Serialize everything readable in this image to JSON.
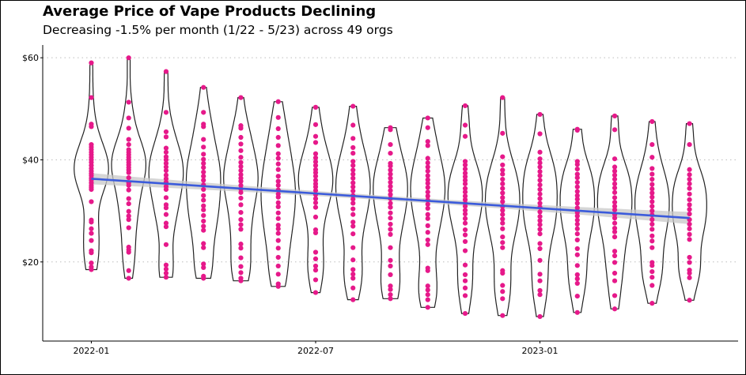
{
  "chart_data": {
    "type": "violin",
    "title": "Average Price of Vape Products Declining",
    "subtitle": "Decreasing -1.5% per month (1/22 - 5/23) across 49 orgs",
    "xlabel": "",
    "ylabel": "",
    "y_ticks": [
      {
        "value": 20,
        "label": "$20"
      },
      {
        "value": 40,
        "label": "$40"
      },
      {
        "value": 60,
        "label": "$60"
      }
    ],
    "x_ticks": [
      {
        "month_index": 0,
        "label": "2022-01"
      },
      {
        "month_index": 6,
        "label": "2022-07"
      },
      {
        "month_index": 12,
        "label": "2023-01"
      }
    ],
    "ylim": [
      4.5,
      62.5
    ],
    "xlim_months": [
      -1.3,
      17.3
    ],
    "grid": "horizontal dotted",
    "colors": {
      "points": "#e6198a",
      "trend": "#3b5bdb",
      "band": "#c8c8c8",
      "violin": "#222222"
    },
    "months": [
      {
        "month": "2022-01",
        "min": 18.5,
        "max": 59.0,
        "values": [
          18.5,
          19.0,
          19.8,
          21.8,
          22.2,
          24.2,
          25.6,
          26.5,
          27.8,
          28.2,
          31.8,
          34.2,
          34.6,
          35.0,
          35.5,
          36.0,
          36.4,
          36.9,
          37.3,
          37.8,
          38.3,
          38.9,
          39.5,
          40.0,
          40.5,
          41.0,
          41.5,
          42.0,
          42.5,
          43.0,
          46.5,
          47.0,
          52.2,
          59.0
        ]
      },
      {
        "month": "2022-02",
        "min": 16.8,
        "max": 60.0,
        "values": [
          16.8,
          18.3,
          21.9,
          22.4,
          22.9,
          26.7,
          28.3,
          29.0,
          29.9,
          31.4,
          32.4,
          34.1,
          35.0,
          35.5,
          36.5,
          37.5,
          38.0,
          38.5,
          39.0,
          39.5,
          40.0,
          40.5,
          41.0,
          41.5,
          42.0,
          43.0,
          44.0,
          46.2,
          48.2,
          51.3,
          60.0
        ]
      },
      {
        "month": "2022-03",
        "min": 17.0,
        "max": 57.3,
        "values": [
          17.0,
          17.8,
          18.6,
          19.4,
          23.4,
          26.9,
          27.6,
          29.3,
          30.6,
          31.2,
          32.6,
          34.2,
          34.8,
          35.6,
          36.3,
          37.0,
          37.9,
          38.6,
          39.3,
          40.0,
          40.6,
          41.5,
          42.3,
          44.5,
          45.5,
          49.3,
          57.3
        ]
      },
      {
        "month": "2022-04",
        "min": 16.8,
        "max": 54.2,
        "values": [
          16.8,
          17.2,
          18.9,
          19.6,
          22.8,
          23.6,
          26.2,
          27.0,
          28.0,
          29.1,
          30.2,
          31.0,
          32.1,
          33.0,
          34.2,
          35.1,
          36.0,
          36.8,
          37.6,
          38.5,
          39.3,
          40.1,
          41.1,
          42.5,
          44.0,
          46.5,
          47.0,
          49.3,
          54.2
        ]
      },
      {
        "month": "2022-05",
        "min": 16.3,
        "max": 52.2,
        "values": [
          16.3,
          16.8,
          17.9,
          19.1,
          20.8,
          22.7,
          23.5,
          26.4,
          27.3,
          28.3,
          29.7,
          31.2,
          32.5,
          33.6,
          34.3,
          35.0,
          35.8,
          36.4,
          37.1,
          37.9,
          38.7,
          39.5,
          40.5,
          41.8,
          43.1,
          44.4,
          46.2,
          46.7,
          52.2
        ]
      },
      {
        "month": "2022-06",
        "min": 15.2,
        "max": 51.4,
        "values": [
          15.2,
          15.7,
          17.6,
          19.2,
          20.9,
          22.7,
          24.2,
          25.6,
          26.5,
          27.2,
          28.5,
          29.6,
          30.8,
          31.6,
          32.7,
          33.3,
          34.1,
          35.0,
          35.8,
          36.8,
          38.1,
          39.2,
          40.3,
          41.2,
          42.8,
          44.4,
          46.1,
          48.3,
          51.4
        ]
      },
      {
        "month": "2022-07",
        "min": 14.0,
        "max": 50.3,
        "values": [
          14.0,
          16.5,
          18.4,
          19.2,
          20.6,
          21.9,
          25.7,
          26.3,
          28.8,
          30.7,
          31.6,
          32.4,
          33.2,
          34.0,
          34.7,
          35.3,
          36.0,
          36.8,
          37.5,
          38.1,
          38.9,
          39.6,
          40.4,
          41.2,
          43.4,
          44.6,
          46.9,
          50.3
        ]
      },
      {
        "month": "2022-08",
        "min": 12.6,
        "max": 50.5,
        "values": [
          12.6,
          14.9,
          16.8,
          17.6,
          18.5,
          20.4,
          22.8,
          25.5,
          27.0,
          27.8,
          29.3,
          30.4,
          31.5,
          32.3,
          33.0,
          33.9,
          34.7,
          35.5,
          36.4,
          37.2,
          38.0,
          38.9,
          39.7,
          41.3,
          42.4,
          44.2,
          46.8,
          50.5
        ]
      },
      {
        "month": "2022-09",
        "min": 12.8,
        "max": 46.3,
        "values": [
          12.8,
          13.6,
          14.6,
          15.3,
          17.5,
          19.2,
          20.3,
          22.8,
          25.4,
          26.4,
          27.4,
          28.6,
          29.6,
          30.7,
          31.5,
          32.4,
          33.2,
          34.0,
          34.8,
          35.6,
          36.4,
          37.2,
          38.0,
          38.8,
          39.3,
          41.3,
          43.0,
          45.9,
          46.3
        ]
      },
      {
        "month": "2022-10",
        "min": 11.1,
        "max": 48.2,
        "values": [
          11.1,
          12.6,
          13.6,
          14.5,
          15.3,
          18.3,
          18.8,
          23.4,
          24.3,
          25.8,
          27.1,
          28.5,
          29.3,
          30.5,
          31.3,
          32.1,
          32.9,
          33.7,
          34.6,
          35.4,
          36.1,
          36.9,
          37.8,
          38.6,
          39.4,
          40.3,
          42.8,
          43.6,
          46.3,
          48.2
        ]
      },
      {
        "month": "2022-11",
        "min": 9.9,
        "max": 50.6,
        "values": [
          9.9,
          13.4,
          14.9,
          16.3,
          17.5,
          19.4,
          22.2,
          24.0,
          25.3,
          26.3,
          27.6,
          28.5,
          29.4,
          30.1,
          30.9,
          31.5,
          32.2,
          32.9,
          33.7,
          34.4,
          35.3,
          36.0,
          36.7,
          37.4,
          38.2,
          39.0,
          39.7,
          44.6,
          46.8,
          50.6
        ]
      },
      {
        "month": "2022-12",
        "min": 9.5,
        "max": 52.2,
        "values": [
          9.5,
          12.8,
          14.2,
          15.4,
          17.8,
          18.3,
          22.8,
          23.8,
          24.9,
          26.5,
          27.6,
          28.4,
          29.3,
          30.1,
          30.9,
          31.8,
          32.6,
          33.5,
          34.4,
          35.3,
          36.2,
          37.2,
          38.0,
          39.0,
          40.6,
          45.2,
          52.2
        ]
      },
      {
        "month": "2023-01",
        "min": 9.3,
        "max": 48.9,
        "values": [
          9.3,
          13.6,
          14.4,
          16.3,
          17.6,
          20.3,
          22.6,
          23.6,
          25.5,
          26.4,
          27.3,
          28.1,
          28.9,
          29.8,
          30.7,
          31.5,
          32.4,
          33.3,
          34.2,
          35.1,
          36.0,
          36.9,
          37.7,
          38.6,
          39.4,
          40.2,
          41.5,
          45.1,
          48.9
        ]
      },
      {
        "month": "2023-02",
        "min": 10.1,
        "max": 46.0,
        "values": [
          10.1,
          13.3,
          15.8,
          16.7,
          17.5,
          19.3,
          21.4,
          22.6,
          24.3,
          25.5,
          26.5,
          27.4,
          28.2,
          29.0,
          29.7,
          30.6,
          31.5,
          32.3,
          33.0,
          33.8,
          34.7,
          35.6,
          36.5,
          37.2,
          38.2,
          39.1,
          39.7,
          45.8,
          46.0
        ]
      },
      {
        "month": "2023-03",
        "min": 10.8,
        "max": 48.6,
        "values": [
          10.8,
          13.4,
          16.3,
          17.8,
          19.9,
          21.2,
          22.1,
          24.9,
          25.9,
          26.6,
          27.6,
          28.6,
          29.3,
          30.2,
          30.9,
          31.7,
          32.6,
          33.6,
          34.5,
          35.3,
          36.2,
          37.0,
          37.8,
          38.6,
          40.2,
          45.9,
          48.6
        ]
      },
      {
        "month": "2023-04",
        "min": 11.9,
        "max": 47.5,
        "values": [
          11.9,
          15.4,
          17.0,
          18.1,
          19.3,
          19.9,
          22.8,
          24.1,
          25.1,
          26.4,
          27.4,
          28.3,
          29.2,
          30.0,
          30.9,
          31.8,
          32.7,
          33.5,
          34.3,
          35.2,
          36.2,
          37.2,
          38.3,
          40.5,
          43.0,
          47.5
        ]
      },
      {
        "month": "2023-05",
        "min": 12.5,
        "max": 47.1,
        "values": [
          12.5,
          16.9,
          17.8,
          18.4,
          19.9,
          20.9,
          24.4,
          25.4,
          26.5,
          27.4,
          28.3,
          29.4,
          30.3,
          31.2,
          32.2,
          33.3,
          34.4,
          35.3,
          36.2,
          37.1,
          38.1,
          43.0,
          47.1
        ]
      }
    ],
    "trend": {
      "label": "",
      "start": {
        "month_index": 0,
        "value": 36.3
      },
      "end": {
        "month_index": 16,
        "value": 28.6
      },
      "band_halfwidth_start": 1.1,
      "band_halfwidth_mid": 0.45,
      "band_halfwidth_end": 1.2
    }
  }
}
